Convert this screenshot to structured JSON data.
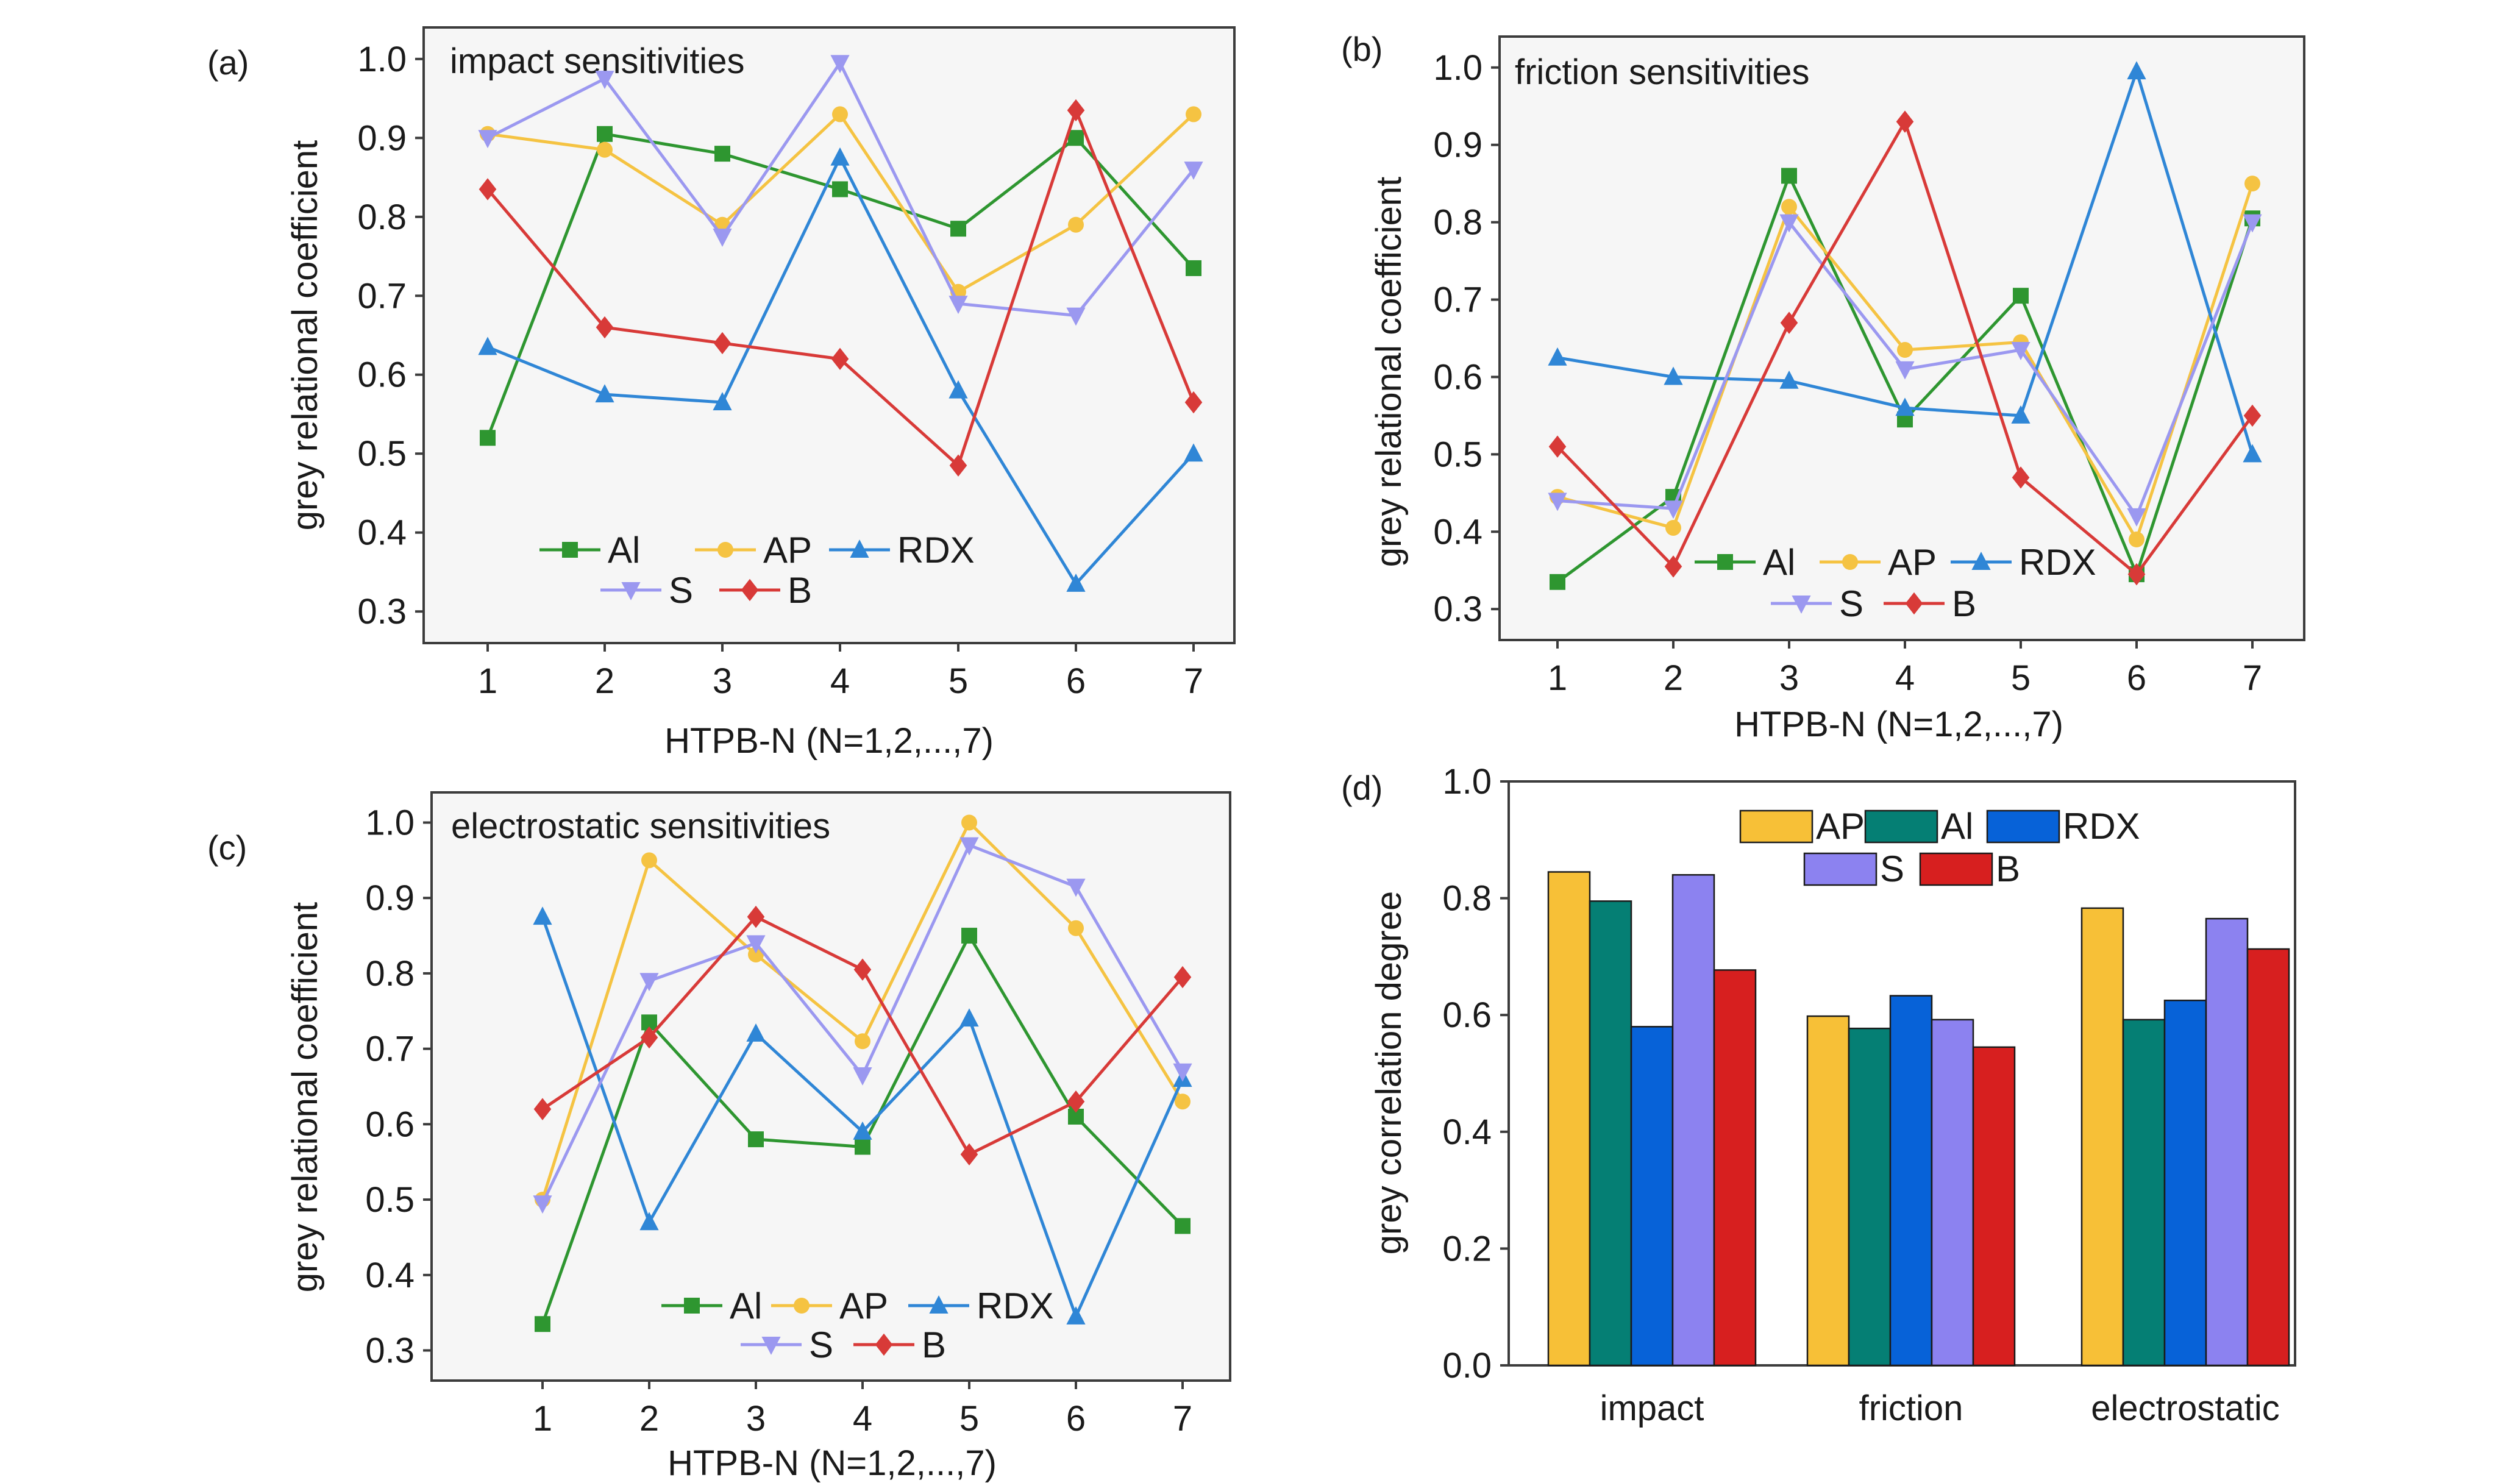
{
  "chart_data": [
    {
      "panel": "(a)",
      "type": "line",
      "title": "impact sensitivities",
      "xlabel": "HTPB-N (N=1,2,...,7)",
      "ylabel": "grey relational coefficient",
      "x": [
        1,
        2,
        3,
        4,
        5,
        6,
        7
      ],
      "ylim": [
        0.26,
        1.04
      ],
      "yticks": [
        "0.3",
        "0.4",
        "0.5",
        "0.6",
        "0.7",
        "0.8",
        "0.9",
        "1.0"
      ],
      "legend": "bottom-left",
      "series": [
        {
          "name": "Al",
          "marker": "square",
          "values": [
            0.52,
            0.905,
            0.88,
            0.835,
            0.785,
            0.9,
            0.735
          ]
        },
        {
          "name": "AP",
          "marker": "circle",
          "values": [
            0.905,
            0.885,
            0.79,
            0.93,
            0.705,
            0.79,
            0.93
          ]
        },
        {
          "name": "RDX",
          "marker": "triangle-up",
          "values": [
            0.635,
            0.575,
            0.565,
            0.875,
            0.58,
            0.335,
            0.5
          ]
        },
        {
          "name": "S",
          "marker": "triangle-down",
          "values": [
            0.9,
            0.975,
            0.775,
            0.995,
            0.69,
            0.675,
            0.86
          ]
        },
        {
          "name": "B",
          "marker": "diamond",
          "values": [
            0.835,
            0.66,
            0.64,
            0.62,
            0.485,
            0.935,
            0.565
          ]
        }
      ]
    },
    {
      "panel": "(b)",
      "type": "line",
      "title": "friction sensitivities",
      "xlabel": "HTPB-N (N=1,2,...,7)",
      "ylabel": "grey relational coefficient",
      "x": [
        1,
        2,
        3,
        4,
        5,
        6,
        7
      ],
      "ylim": [
        0.26,
        1.04
      ],
      "yticks": [
        "0.3",
        "0.4",
        "0.5",
        "0.6",
        "0.7",
        "0.8",
        "0.9",
        "1.0"
      ],
      "legend": "bottom-center",
      "series": [
        {
          "name": "Al",
          "marker": "square",
          "values": [
            0.335,
            0.445,
            0.86,
            0.545,
            0.705,
            0.345,
            0.805
          ]
        },
        {
          "name": "AP",
          "marker": "circle",
          "values": [
            0.445,
            0.405,
            0.82,
            0.635,
            0.645,
            0.39,
            0.85
          ]
        },
        {
          "name": "RDX",
          "marker": "triangle-up",
          "values": [
            0.625,
            0.6,
            0.595,
            0.56,
            0.55,
            0.995,
            0.5
          ]
        },
        {
          "name": "S",
          "marker": "triangle-down",
          "values": [
            0.44,
            0.43,
            0.8,
            0.61,
            0.635,
            0.42,
            0.8
          ]
        },
        {
          "name": "B",
          "marker": "diamond",
          "values": [
            0.51,
            0.355,
            0.67,
            0.93,
            0.47,
            0.345,
            0.55
          ]
        }
      ]
    },
    {
      "panel": "(c)",
      "type": "line",
      "title": "electrostatic sensitivities",
      "xlabel": "HTPB-N (N=1,2,...,7)",
      "ylabel": "grey relational coefficient",
      "x": [
        1,
        2,
        3,
        4,
        5,
        6,
        7
      ],
      "ylim": [
        0.26,
        1.04
      ],
      "yticks": [
        "0.3",
        "0.4",
        "0.5",
        "0.6",
        "0.7",
        "0.8",
        "0.9",
        "1.0"
      ],
      "legend": "bottom-right",
      "series": [
        {
          "name": "Al",
          "marker": "square",
          "values": [
            0.335,
            0.735,
            0.58,
            0.57,
            0.85,
            0.61,
            0.465
          ]
        },
        {
          "name": "AP",
          "marker": "circle",
          "values": [
            0.5,
            0.95,
            0.825,
            0.71,
            1.0,
            0.86,
            0.63
          ]
        },
        {
          "name": "RDX",
          "marker": "triangle-up",
          "values": [
            0.875,
            0.47,
            0.72,
            0.59,
            0.74,
            0.345,
            0.66
          ]
        },
        {
          "name": "S",
          "marker": "triangle-down",
          "values": [
            0.495,
            0.79,
            0.84,
            0.665,
            0.97,
            0.915,
            0.67
          ]
        },
        {
          "name": "B",
          "marker": "diamond",
          "values": [
            0.62,
            0.715,
            0.875,
            0.805,
            0.56,
            0.63,
            0.795
          ]
        }
      ]
    },
    {
      "panel": "(d)",
      "type": "bar",
      "title": "",
      "xlabel": "",
      "ylabel": "grey correlation degree",
      "categories": [
        "impact",
        "friction",
        "electrostatic"
      ],
      "ylim": [
        0.0,
        1.0
      ],
      "yticks": [
        "0.0",
        "0.2",
        "0.4",
        "0.6",
        "0.8",
        "1.0"
      ],
      "legend": "top-center",
      "series": [
        {
          "name": "AP",
          "values": [
            0.845,
            0.598,
            0.783
          ]
        },
        {
          "name": "Al",
          "values": [
            0.795,
            0.577,
            0.592
          ]
        },
        {
          "name": "RDX",
          "values": [
            0.58,
            0.633,
            0.625
          ]
        },
        {
          "name": "S",
          "values": [
            0.84,
            0.592,
            0.765
          ]
        },
        {
          "name": "B",
          "values": [
            0.677,
            0.545,
            0.713
          ]
        }
      ]
    }
  ],
  "colors": {
    "Al_line": "#2e9630",
    "AP_line": "#f5c342",
    "RDX_line": "#2f86d6",
    "S_line": "#9b98f0",
    "B_line": "#d83a38",
    "AP_bar": "#f7c037",
    "Al_bar": "#057f74",
    "RDX_bar": "#0762d8",
    "S_bar": "#8c82f0",
    "B_bar": "#d71f1f",
    "frame_fill": "#f6f6f6"
  }
}
